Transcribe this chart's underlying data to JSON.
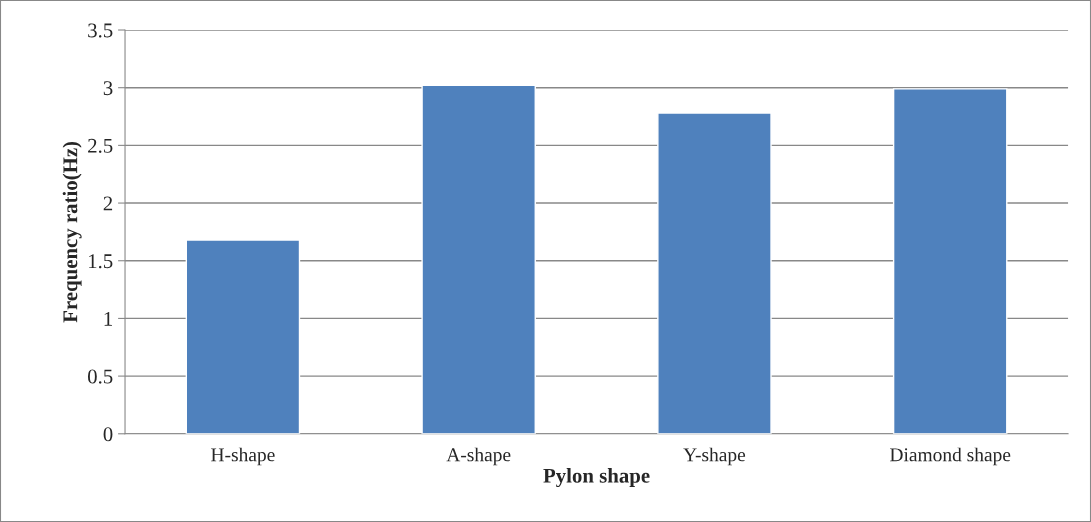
{
  "chart_data": {
    "type": "bar",
    "xlabel": "Pylon shape",
    "ylabel": "Frequency ratio(Hz)",
    "categories": [
      "H-shape",
      "A-shape",
      "Y-shape",
      "Diamond shape"
    ],
    "values": [
      1.68,
      3.02,
      2.78,
      2.99
    ],
    "color": "#4f81bd",
    "ylim": [
      0,
      3.5
    ],
    "yticks": [
      0,
      0.5,
      1,
      1.5,
      2,
      2.5,
      3,
      3.5
    ],
    "grid": "y",
    "legend": false
  }
}
